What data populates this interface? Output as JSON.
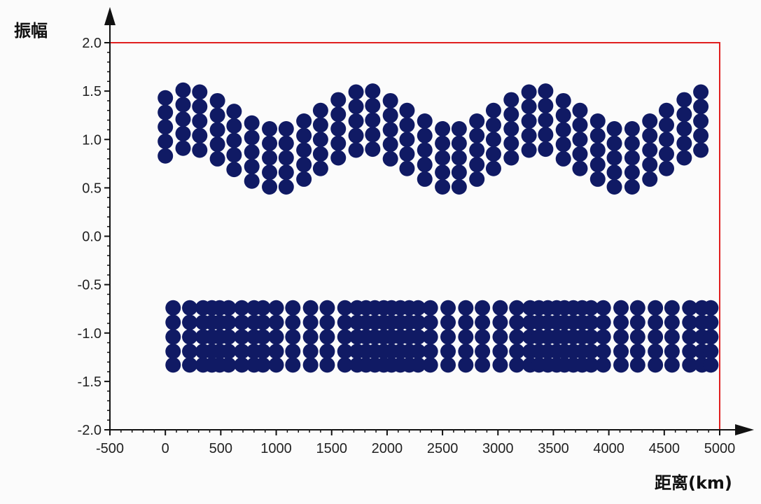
{
  "chart_data": {
    "type": "scatter",
    "title": "",
    "xlabel": "距离(km)",
    "ylabel": "振幅",
    "xlim": [
      -500,
      5000
    ],
    "ylim": [
      -2.0,
      2.0
    ],
    "x_ticks": [
      "-500",
      "0",
      "500",
      "1000",
      "1500",
      "2000",
      "2500",
      "3000",
      "3500",
      "4000",
      "4500",
      "5000"
    ],
    "y_ticks": [
      "2.0",
      "1.5",
      "1.0",
      "0.5",
      "0.0",
      "-0.5",
      "-1.0",
      "-1.5",
      "-2.0"
    ],
    "grid": false,
    "legend": "none",
    "frame_color": "#e02020",
    "marker_color": "#101a64",
    "series": [
      {
        "columns_x": [
          0,
          160,
          310,
          470,
          620,
          780,
          940,
          1090,
          1250,
          1400,
          1560,
          1720,
          1870,
          2030,
          2180,
          2340,
          2500,
          2650,
          2810,
          2960,
          3120,
          3280,
          3430,
          3590,
          3740,
          3900,
          4050,
          4210,
          4370,
          4520,
          4680,
          4830
        ],
        "base_y": [
          0.83,
          0.91,
          0.89,
          0.8,
          0.69,
          0.57,
          0.51,
          0.51,
          0.59,
          0.7,
          0.81,
          0.89,
          0.9,
          0.8,
          0.7,
          0.59,
          0.51,
          0.51,
          0.59,
          0.7,
          0.81,
          0.89,
          0.9,
          0.8,
          0.7,
          0.59,
          0.51,
          0.51,
          0.59,
          0.7,
          0.81,
          0.89
        ],
        "column_step": 0.15,
        "column_points": 5
      },
      {
        "columns_x": [
          70,
          220,
          380,
          530,
          690,
          840,
          1000,
          1150,
          1310,
          1460,
          1620,
          1770,
          1930,
          2080,
          2240,
          2390,
          2550,
          2710,
          2860,
          3020,
          3170,
          3330,
          3490,
          3640,
          3800,
          3950,
          4110,
          4260,
          4420,
          4570,
          4730,
          4880
        ],
        "offsets_x": [
          [
            0
          ],
          [
            0
          ],
          [
            -40,
            40
          ],
          [
            -40,
            40
          ],
          [
            0
          ],
          [
            -40,
            40
          ],
          [
            0
          ],
          [
            0
          ],
          [
            0
          ],
          [
            0
          ],
          [
            0
          ],
          [
            -40,
            40
          ],
          [
            -40,
            40
          ],
          [
            -40,
            40
          ],
          [
            -40,
            40
          ],
          [
            0
          ],
          [
            0
          ],
          [
            0
          ],
          [
            0
          ],
          [
            0
          ],
          [
            0
          ],
          [
            -40,
            40
          ],
          [
            -40,
            40
          ],
          [
            -40,
            40
          ],
          [
            -40,
            40
          ],
          [
            0
          ],
          [
            0
          ],
          [
            0
          ],
          [
            0
          ],
          [
            0
          ],
          [
            0
          ],
          [
            -40,
            40
          ]
        ],
        "y_values": [
          -0.74,
          -0.89,
          -1.04,
          -1.19,
          -1.33
        ]
      }
    ]
  }
}
